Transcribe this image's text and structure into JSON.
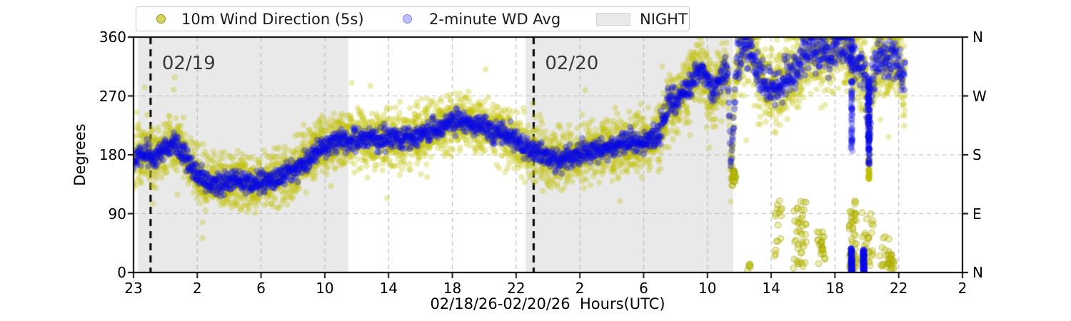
{
  "figure": {
    "kind": "wind-direction-time-series",
    "background": "#ffffff"
  },
  "chart_data": {
    "type": "scatter",
    "title": "",
    "xlabel": "02/18/26-02/20/26  Hours(UTC)",
    "ylabel": "Degrees",
    "ylim": [
      0,
      360
    ],
    "x_span_hours": 52,
    "x_tick_hours": [
      0,
      4,
      8,
      12,
      16,
      20,
      24,
      28,
      32,
      36,
      40,
      44,
      48,
      52
    ],
    "x_tick_labels": [
      "23",
      "2",
      "6",
      "10",
      "14",
      "18",
      "22",
      "2",
      "6",
      "10",
      "14",
      "18",
      "22",
      "2"
    ],
    "y_ticks": [
      0,
      90,
      180,
      270,
      360
    ],
    "y_tick_labels": [
      "0",
      "90",
      "180",
      "270",
      "360"
    ],
    "y_right_labels": [
      "N",
      "E",
      "S",
      "W",
      "N"
    ],
    "grid": true,
    "grid_color": "#bcbcbc",
    "legend": [
      {
        "label": "10m Wind Direction (5s)",
        "marker": "dot",
        "color": "#bfbf00"
      },
      {
        "label": "2-minute WD Avg",
        "marker": "dot",
        "color": "#0000ff"
      },
      {
        "label": "NIGHT",
        "marker": "patch",
        "color": "#e9e9e9"
      }
    ],
    "night_bands": [
      {
        "start_h": 0.27,
        "end_h": 13.48
      },
      {
        "start_h": 24.6,
        "end_h": 37.62
      }
    ],
    "day_lines": [
      {
        "t_h": 1.07,
        "label": "02/19"
      },
      {
        "t_h": 25.1,
        "label": "02/20"
      }
    ],
    "series": [
      {
        "name": "10m Wind Direction (5s)",
        "color": "#bfbf00",
        "alpha": 0.3,
        "radius": 4.2,
        "points": 5200
      },
      {
        "name": "2-minute WD Avg",
        "color": "#0a0ae6",
        "alpha": 0.35,
        "radius": 4.6,
        "points": 2400
      }
    ],
    "data_end_h": 48.4,
    "mean_keypoints": [
      [
        0,
        168
      ],
      [
        0.6,
        186
      ],
      [
        1.3,
        176
      ],
      [
        1.9,
        190
      ],
      [
        2.6,
        196
      ],
      [
        3.3,
        176
      ],
      [
        3.9,
        150
      ],
      [
        4.6,
        140
      ],
      [
        5.5,
        136
      ],
      [
        6.4,
        142
      ],
      [
        7.3,
        136
      ],
      [
        8.2,
        141
      ],
      [
        9.1,
        146
      ],
      [
        10,
        155
      ],
      [
        10.9,
        172
      ],
      [
        11.8,
        192
      ],
      [
        12.7,
        200
      ],
      [
        13.6,
        200
      ],
      [
        14.5,
        207
      ],
      [
        15.4,
        201
      ],
      [
        16.3,
        207
      ],
      [
        17.2,
        203
      ],
      [
        18,
        212
      ],
      [
        18.9,
        218
      ],
      [
        19.8,
        228
      ],
      [
        20.7,
        232
      ],
      [
        21.6,
        226
      ],
      [
        22.5,
        216
      ],
      [
        23.4,
        210
      ],
      [
        24.3,
        196
      ],
      [
        25.1,
        186
      ],
      [
        25.7,
        180
      ],
      [
        26.3,
        174
      ],
      [
        27,
        176
      ],
      [
        27.9,
        181
      ],
      [
        28.8,
        186
      ],
      [
        29.7,
        190
      ],
      [
        30.6,
        196
      ],
      [
        31.5,
        200
      ],
      [
        32.4,
        203
      ],
      [
        33,
        211
      ],
      [
        33.5,
        255
      ],
      [
        33.9,
        262
      ],
      [
        34.4,
        271
      ],
      [
        34.8,
        286
      ],
      [
        35.3,
        303
      ],
      [
        35.6,
        310
      ],
      [
        36,
        294
      ],
      [
        36.35,
        275
      ],
      [
        36.7,
        292
      ],
      [
        37.15,
        308
      ],
      [
        37.3,
        295
      ],
      [
        37.4,
        225
      ],
      [
        37.45,
        150
      ],
      [
        37.65,
        230
      ],
      [
        37.8,
        320
      ],
      [
        38.05,
        336
      ],
      [
        38.35,
        345
      ],
      [
        38.65,
        338
      ],
      [
        38.95,
        322
      ],
      [
        39.25,
        312
      ],
      [
        39.6,
        287
      ],
      [
        40.1,
        280
      ],
      [
        40.6,
        290
      ],
      [
        41.1,
        300
      ],
      [
        41.6,
        310
      ],
      [
        42,
        330
      ],
      [
        42.5,
        344
      ],
      [
        43,
        337
      ],
      [
        43.5,
        326
      ],
      [
        43.9,
        345
      ],
      [
        44.4,
        350
      ],
      [
        44.9,
        340
      ],
      [
        45.3,
        322
      ],
      [
        45.7,
        310
      ],
      [
        45.9,
        305
      ],
      [
        46.1,
        235
      ],
      [
        46.2,
        212
      ],
      [
        46.35,
        300
      ],
      [
        46.7,
        325
      ],
      [
        47,
        332
      ],
      [
        47.4,
        318
      ],
      [
        47.7,
        335
      ],
      [
        48,
        320
      ],
      [
        48.2,
        300
      ],
      [
        48.4,
        290
      ]
    ],
    "spread_segments": [
      {
        "t0": 0,
        "t1": 33,
        "sigma_raw": 20,
        "sigma_avg": 8
      },
      {
        "t0": 33,
        "t1": 37.3,
        "sigma_raw": 24,
        "sigma_avg": 10
      },
      {
        "t0": 37.3,
        "t1": 37.8,
        "sigma_raw": 20,
        "sigma_avg": 12
      },
      {
        "t0": 37.8,
        "t1": 48.4,
        "sigma_raw": 30,
        "sigma_avg": 15
      }
    ],
    "wrap_clusters": [
      {
        "t0": 37.5,
        "t1": 37.8,
        "d0": 132,
        "d1": 162,
        "n": 22
      },
      {
        "t0": 38.5,
        "t1": 38.7,
        "d0": 0,
        "d1": 15,
        "n": 6
      },
      {
        "t0": 40.2,
        "t1": 40.7,
        "d0": 25,
        "d1": 115,
        "n": 16
      },
      {
        "t0": 41.4,
        "t1": 42.2,
        "d0": 5,
        "d1": 110,
        "n": 42
      },
      {
        "t0": 42.9,
        "t1": 43.4,
        "d0": 10,
        "d1": 65,
        "n": 24
      },
      {
        "t0": 44.9,
        "t1": 45.35,
        "d0": 0,
        "d1": 110,
        "n": 52
      },
      {
        "t0": 45.6,
        "t1": 46.4,
        "d0": 5,
        "d1": 95,
        "n": 28
      },
      {
        "t0": 46.8,
        "t1": 47.4,
        "d0": 5,
        "d1": 60,
        "n": 16
      },
      {
        "t0": 47.3,
        "t1": 47.75,
        "d0": 0,
        "d1": 28,
        "n": 20
      }
    ],
    "streaks": [
      {
        "series": "avg",
        "t": 45.05,
        "deg_min": 185,
        "deg_max": 360,
        "alpha": 0.28
      },
      {
        "series": "avg",
        "t": 45.05,
        "deg_min": 0,
        "deg_max": 38,
        "alpha": 0.4
      },
      {
        "series": "avg",
        "t": 45.8,
        "deg_min": 0,
        "deg_max": 35,
        "alpha": 0.4
      },
      {
        "series": "avg",
        "t": 46.13,
        "deg_min": 165,
        "deg_max": 300,
        "alpha": 0.45
      },
      {
        "series": "raw",
        "t": 46.13,
        "deg_min": 140,
        "deg_max": 175,
        "alpha": 0.4
      }
    ],
    "colors": {
      "raw": "#bfbf00",
      "avg": "#0a0ae6",
      "night": "#e9e9e9",
      "day_line": "#000000",
      "annotation": "#3a3a3a"
    }
  }
}
